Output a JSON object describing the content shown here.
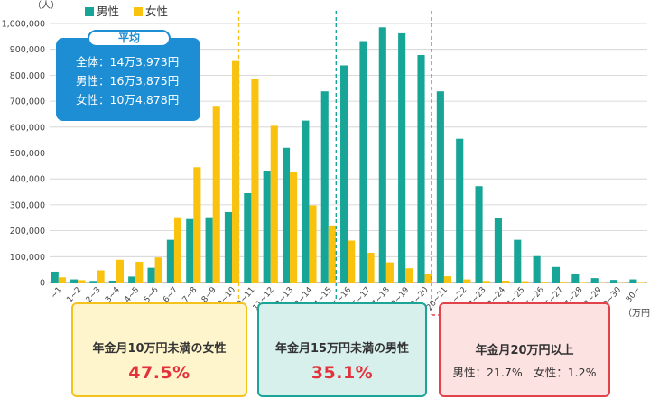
{
  "chart_data": {
    "type": "bar",
    "y_unit": "（人）",
    "x_unit": "（万円）",
    "categories": [
      "~1",
      "1~2",
      "2~3",
      "3~4",
      "4~5",
      "5~6",
      "6~7",
      "7~8",
      "8~9",
      "9~10",
      "10~11",
      "11~12",
      "12~13",
      "13~14",
      "14~15",
      "15~16",
      "16~17",
      "17~18",
      "18~19",
      "19~20",
      "20~21",
      "21~22",
      "22~23",
      "23~24",
      "24~25",
      "25~26",
      "26~27",
      "27~28",
      "28~29",
      "29~30",
      "30~"
    ],
    "series": [
      {
        "name": "男性",
        "color": "#17a597",
        "values": [
          42000,
          12000,
          6000,
          7000,
          23000,
          57000,
          165000,
          245000,
          252000,
          272000,
          345000,
          432000,
          520000,
          625000,
          738000,
          838000,
          932000,
          985000,
          962000,
          878000,
          738000,
          555000,
          372000,
          248000,
          165000,
          102000,
          60000,
          33000,
          17000,
          10000,
          12000
        ]
      },
      {
        "name": "女性",
        "color": "#f9c20e",
        "values": [
          20000,
          9000,
          47000,
          88000,
          80000,
          97000,
          252000,
          445000,
          682000,
          855000,
          785000,
          605000,
          428000,
          298000,
          220000,
          162000,
          115000,
          78000,
          55000,
          35000,
          24000,
          12000,
          6000,
          7000,
          5000,
          3000,
          3000,
          2000,
          1000,
          1000,
          2000
        ]
      }
    ],
    "ylim": [
      0,
      1000000
    ],
    "yticks": [
      "0",
      "100,000",
      "200,000",
      "300,000",
      "400,000",
      "500,000",
      "600,000",
      "700,000",
      "800,000",
      "900,000",
      "1,000,000"
    ],
    "legend_position": "top-left",
    "grid": true
  },
  "average": {
    "title": "平均",
    "lines": [
      "全体：14万3,973円",
      "男性：16万3,875円",
      "女性：10万4,878円"
    ]
  },
  "callouts": [
    {
      "title": "年金月10万円未満の女性",
      "value": "47.5%"
    },
    {
      "title": "年金月15万円未満の男性",
      "value": "35.1%"
    },
    {
      "title": "年金月20万円以上",
      "sub": "男性：21.7%　女性：1.2%"
    }
  ],
  "marker_colors": {
    "female_10": "#f2c31d",
    "male_15": "#1aa598",
    "over_20": "#e2434b"
  }
}
